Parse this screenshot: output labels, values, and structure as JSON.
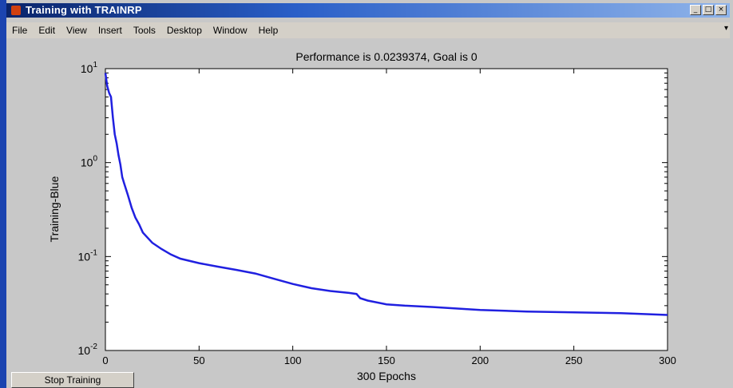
{
  "window": {
    "title": "Training with TRAINRP",
    "buttons": [
      "_",
      "□",
      "×"
    ]
  },
  "menu": [
    "File",
    "Edit",
    "View",
    "Insert",
    "Tools",
    "Desktop",
    "Window",
    "Help"
  ],
  "plot": {
    "title": "Performance is 0.0239374, Goal is 0",
    "ylabel": "Training-Blue",
    "xlabel": "300 Epochs"
  },
  "stop_button": "Stop Training",
  "chart_data": {
    "type": "line",
    "title": "Performance is 0.0239374, Goal is 0",
    "xlabel": "300 Epochs",
    "ylabel": "Training-Blue",
    "xlim": [
      0,
      300
    ],
    "ylim": [
      0.01,
      10
    ],
    "yscale": "log",
    "x_ticks": [
      "0",
      "50",
      "100",
      "150",
      "200",
      "250",
      "300"
    ],
    "y_ticks": [
      {
        "base": "10",
        "exp": "1"
      },
      {
        "base": "10",
        "exp": "0"
      },
      {
        "base": "10",
        "exp": "-1"
      },
      {
        "base": "10",
        "exp": "-2"
      }
    ],
    "series": [
      {
        "color": "#2020e0",
        "x": [
          0,
          1,
          2,
          3,
          4,
          5,
          6,
          7,
          8,
          9,
          10,
          12,
          14,
          16,
          18,
          20,
          25,
          30,
          35,
          40,
          50,
          60,
          70,
          80,
          90,
          100,
          110,
          120,
          130,
          134,
          136,
          138,
          140,
          150,
          160,
          175,
          200,
          225,
          250,
          275,
          300
        ],
        "y": [
          9.0,
          6.5,
          5.5,
          5.0,
          3.0,
          2.0,
          1.6,
          1.2,
          0.95,
          0.7,
          0.6,
          0.45,
          0.33,
          0.26,
          0.22,
          0.18,
          0.14,
          0.12,
          0.105,
          0.095,
          0.085,
          0.078,
          0.072,
          0.066,
          0.058,
          0.051,
          0.046,
          0.043,
          0.041,
          0.04,
          0.036,
          0.035,
          0.034,
          0.031,
          0.03,
          0.029,
          0.027,
          0.026,
          0.0255,
          0.025,
          0.0239
        ]
      }
    ],
    "grid": false,
    "legend": "none"
  }
}
